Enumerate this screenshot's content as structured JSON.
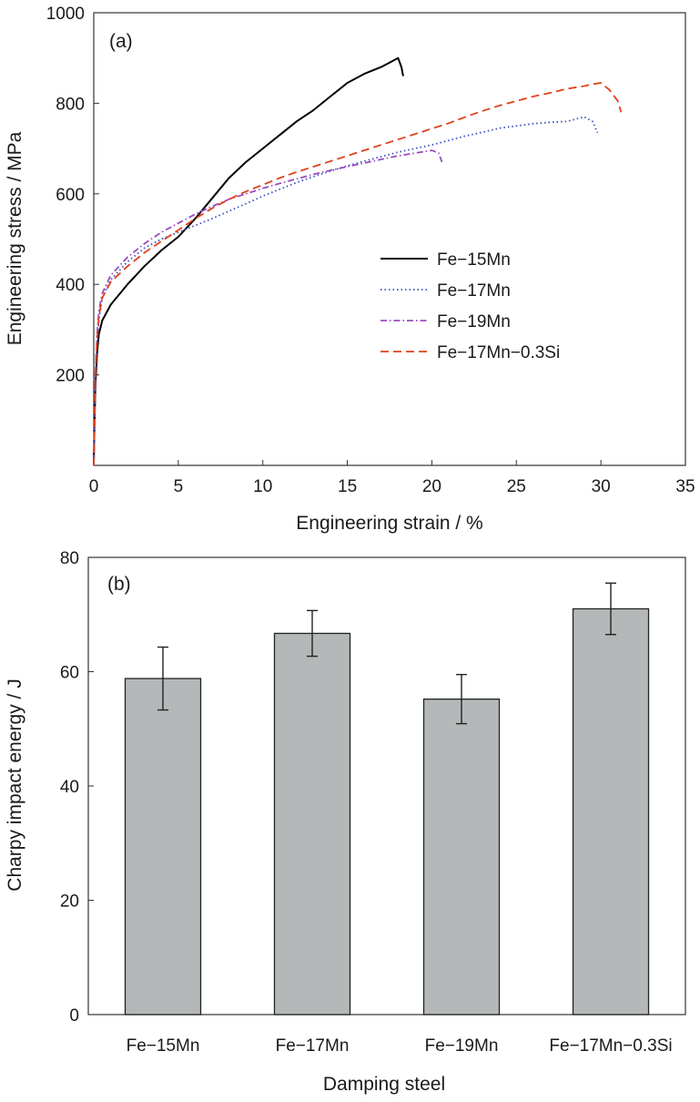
{
  "chart_data": [
    {
      "type": "line",
      "panel_label": "(a)",
      "xlabel": "Engineering strain / %",
      "ylabel": "Engineering stress / MPa",
      "xlim": [
        0,
        35
      ],
      "ylim": [
        0,
        1000
      ],
      "xticks": [
        0,
        5,
        10,
        15,
        20,
        25,
        30,
        35
      ],
      "yticks": [
        200,
        400,
        600,
        800,
        1000
      ],
      "grid": false,
      "legend_position": "center-right",
      "series": [
        {
          "name": "Fe−15Mn",
          "color": "#000000",
          "dash": "solid",
          "x": [
            0,
            0.05,
            0.1,
            0.2,
            0.3,
            0.5,
            1,
            2,
            3,
            4,
            5,
            6,
            7,
            8,
            9,
            10,
            11,
            12,
            13,
            14,
            15,
            16,
            17,
            17.5,
            18,
            18.2,
            18.3
          ],
          "y": [
            0,
            100,
            180,
            250,
            290,
            320,
            355,
            400,
            440,
            475,
            505,
            545,
            590,
            635,
            670,
            700,
            730,
            760,
            785,
            815,
            845,
            865,
            880,
            890,
            900,
            880,
            860
          ]
        },
        {
          "name": "Fe−17Mn",
          "color": "#3a4fc0",
          "dash": "dotted",
          "x": [
            0,
            0.05,
            0.1,
            0.2,
            0.3,
            0.5,
            1,
            2,
            3,
            4,
            5,
            6,
            7,
            8,
            9,
            10,
            11,
            12,
            13,
            14,
            15,
            16,
            17,
            18,
            19,
            20,
            21,
            22,
            23,
            24,
            25,
            26,
            27,
            28,
            29,
            29.5,
            29.8
          ],
          "y": [
            0,
            100,
            200,
            270,
            320,
            370,
            410,
            450,
            480,
            500,
            515,
            530,
            545,
            562,
            578,
            595,
            610,
            625,
            638,
            650,
            662,
            672,
            682,
            692,
            700,
            708,
            718,
            728,
            736,
            745,
            750,
            755,
            758,
            760,
            770,
            760,
            735
          ]
        },
        {
          "name": "Fe−19Mn",
          "color": "#9a4cbf",
          "dash": "dashdot",
          "x": [
            0,
            0.05,
            0.1,
            0.2,
            0.3,
            0.5,
            1,
            2,
            3,
            4,
            5,
            6,
            7,
            8,
            9,
            10,
            11,
            12,
            13,
            14,
            15,
            16,
            17,
            18,
            19,
            20,
            20.4,
            20.6
          ],
          "y": [
            0,
            110,
            210,
            290,
            340,
            380,
            420,
            460,
            490,
            515,
            535,
            555,
            572,
            588,
            600,
            612,
            623,
            633,
            643,
            652,
            660,
            668,
            676,
            684,
            690,
            696,
            690,
            670
          ]
        },
        {
          "name": "Fe−17Mn−0.3Si",
          "color": "#e0401a",
          "dash": "dashed",
          "x": [
            0,
            0.05,
            0.1,
            0.2,
            0.3,
            0.5,
            1,
            2,
            3,
            4,
            5,
            6,
            7,
            8,
            9,
            10,
            11,
            12,
            13,
            14,
            15,
            16,
            17,
            18,
            19,
            20,
            21,
            22,
            23,
            24,
            25,
            26,
            27,
            28,
            29,
            29.5,
            30,
            30.5,
            31,
            31.2
          ],
          "y": [
            0,
            100,
            210,
            280,
            330,
            370,
            405,
            440,
            470,
            495,
            520,
            545,
            568,
            588,
            605,
            620,
            635,
            648,
            660,
            672,
            684,
            696,
            708,
            720,
            732,
            744,
            756,
            770,
            783,
            795,
            805,
            815,
            823,
            832,
            838,
            842,
            845,
            830,
            805,
            780
          ]
        }
      ]
    },
    {
      "type": "bar",
      "panel_label": "(b)",
      "xlabel": "Damping steel",
      "ylabel": "Charpy impact energy / J",
      "ylim": [
        0,
        80
      ],
      "yticks": [
        0,
        20,
        40,
        60,
        80
      ],
      "grid": false,
      "bar_color": "#b4b8b9",
      "categories": [
        "Fe−15Mn",
        "Fe−17Mn",
        "Fe−19Mn",
        "Fe−17Mn−0.3Si"
      ],
      "values": [
        58.8,
        66.7,
        55.2,
        71.0
      ],
      "errors": [
        5.5,
        4.0,
        4.3,
        4.5
      ]
    }
  ]
}
